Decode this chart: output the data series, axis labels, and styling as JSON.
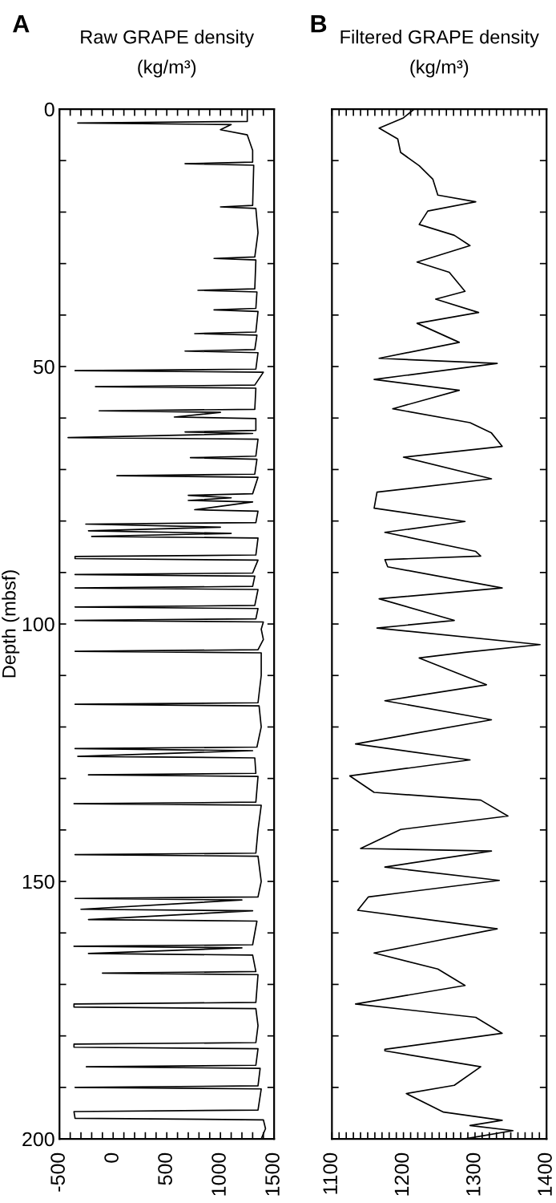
{
  "chart_data": [
    {
      "type": "line",
      "title": "Raw GRAPE density\n(kg/m³)",
      "ylabel": "Depth (mbsf)",
      "annotations": [
        "A"
      ],
      "xlim": [
        -500,
        1500
      ],
      "xticks": [
        -500,
        {
          "value": -400,
          "label": null
        },
        {
          "value": -300,
          "label": null
        },
        {
          "value": -200,
          "label": null
        },
        {
          "value": -100,
          "label": null
        },
        0,
        {
          "value": 100,
          "label": null
        },
        {
          "value": 200,
          "label": null
        },
        {
          "value": 300,
          "label": null
        },
        {
          "value": 400,
          "label": null
        },
        500,
        {
          "value": 600,
          "label": null
        },
        {
          "value": 700,
          "label": null
        },
        {
          "value": 800,
          "label": null
        },
        {
          "value": 900,
          "label": null
        },
        1000,
        {
          "value": 1100,
          "label": null
        },
        {
          "value": 1200,
          "label": null
        },
        {
          "value": 1300,
          "label": null
        },
        {
          "value": 1400,
          "label": null
        },
        1500
      ],
      "ylim": [
        200,
        0
      ],
      "yticks": [
        0,
        {
          "value": 10,
          "label": null
        },
        {
          "value": 20,
          "label": null
        },
        {
          "value": 30,
          "label": null
        },
        {
          "value": 40,
          "label": null
        },
        50,
        {
          "value": 60,
          "label": null
        },
        {
          "value": 70,
          "label": null
        },
        {
          "value": 80,
          "label": null
        },
        {
          "value": 90,
          "label": null
        },
        100,
        {
          "value": 110,
          "label": null
        },
        {
          "value": 120,
          "label": null
        },
        {
          "value": 130,
          "label": null
        },
        {
          "value": 140,
          "label": null
        },
        150,
        {
          "value": 160,
          "label": null
        },
        {
          "value": 170,
          "label": null
        },
        {
          "value": 180,
          "label": null
        },
        {
          "value": 190,
          "label": null
        },
        200
      ],
      "grid": false,
      "legend": false,
      "marker": "none",
      "line_style": "solid",
      "series": [
        {
          "color": "#000000",
          "x": [
            1250,
            1250,
            -330,
            1100,
            1000,
            1250,
            1300,
            1300,
            670,
            1310,
            1300,
            1000,
            1330,
            1350,
            1320,
            940,
            1330,
            1320,
            790,
            1340,
            1330,
            940,
            1350,
            1330,
            760,
            1340,
            1320,
            670,
            1350,
            1330,
            -355,
            1400,
            1320,
            -165,
            1330,
            1320,
            -130,
            1000,
            570,
            1330,
            1330,
            670,
            1300,
            -420,
            1350,
            1330,
            720,
            1340,
            1320,
            35,
            1350,
            1300,
            700,
            1100,
            700,
            1300,
            760,
            1350,
            1330,
            -255,
            1000,
            -230,
            1100,
            -200,
            1350,
            1330,
            -355,
            -355,
            1350,
            1300,
            -355,
            1320,
            1300,
            -355,
            1350,
            1320,
            -355,
            1350,
            1330,
            -355,
            1400,
            1380,
            1400,
            1350,
            -355,
            1380,
            1380,
            1350,
            -355,
            1360,
            1380,
            1340,
            -355,
            1300,
            -330,
            1320,
            1330,
            -230,
            1350,
            1330,
            -365,
            1380,
            1350,
            1330,
            -355,
            1350,
            1380,
            1350,
            -355,
            1200,
            -300,
            1300,
            -230,
            1340,
            1300,
            -365,
            1200,
            -230,
            1300,
            1330,
            -100,
            1350,
            1330,
            -365,
            -365,
            1330,
            1350,
            1330,
            -365,
            -365,
            1350,
            1330,
            -250,
            1370,
            1350,
            -355,
            1380,
            1350,
            -365,
            -355,
            1400,
            1420,
            1380
          ],
          "values": [
            0,
            2.4,
            2.7,
            3.0,
            4,
            5,
            8,
            10.3,
            10.6,
            10.9,
            18.7,
            19,
            19.3,
            24,
            28.7,
            29,
            29.3,
            34.9,
            35.2,
            35.5,
            38.7,
            39,
            39.3,
            43.3,
            43.6,
            43.9,
            46.7,
            47,
            47.3,
            50.5,
            50.8,
            51.1,
            53.6,
            53.9,
            54.2,
            58.3,
            58.6,
            58.9,
            59.8,
            60.1,
            62.4,
            62.7,
            63,
            63.8,
            64.1,
            67.4,
            67.7,
            68,
            70.9,
            71.2,
            71.5,
            74.7,
            75,
            75.5,
            76,
            76.3,
            77.8,
            78.1,
            80.3,
            80.6,
            81.2,
            81.9,
            82.4,
            83,
            83.3,
            86.6,
            86.9,
            87.3,
            87.6,
            90.1,
            90.4,
            90.7,
            92.7,
            93,
            93.3,
            96.4,
            96.7,
            97,
            99,
            99.3,
            99.6,
            101,
            103,
            105,
            105.3,
            105.6,
            110,
            115.3,
            115.6,
            115.9,
            120,
            123.9,
            124.2,
            124.6,
            125.7,
            126,
            129,
            129.3,
            129.6,
            134.6,
            134.9,
            135.2,
            140,
            144.5,
            144.8,
            145.1,
            150,
            153,
            153.3,
            153.6,
            155.4,
            155.7,
            157.4,
            157.7,
            162.3,
            162.6,
            162.9,
            164,
            164.3,
            167.5,
            167.8,
            168.1,
            173.5,
            173.8,
            174.4,
            174.7,
            178,
            181.3,
            181.6,
            182.2,
            182.5,
            185.7,
            186,
            186.3,
            189.7,
            190,
            190.3,
            194.4,
            194.7,
            196,
            196.3,
            198,
            200
          ]
        }
      ]
    },
    {
      "type": "line",
      "title": "Filtered GRAPE density\n(kg/m³)",
      "annotations": [
        "B"
      ],
      "tick_labels": "x",
      "xlim": [
        1100,
        1400
      ],
      "xticks": [
        1100,
        {
          "value": 1110,
          "label": null
        },
        {
          "value": 1120,
          "label": null
        },
        {
          "value": 1130,
          "label": null
        },
        {
          "value": 1140,
          "label": null
        },
        {
          "value": 1150,
          "label": null
        },
        {
          "value": 1160,
          "label": null
        },
        {
          "value": 1170,
          "label": null
        },
        {
          "value": 1180,
          "label": null
        },
        {
          "value": 1190,
          "label": null
        },
        1200,
        {
          "value": 1210,
          "label": null
        },
        {
          "value": 1220,
          "label": null
        },
        {
          "value": 1230,
          "label": null
        },
        {
          "value": 1240,
          "label": null
        },
        {
          "value": 1250,
          "label": null
        },
        {
          "value": 1260,
          "label": null
        },
        {
          "value": 1270,
          "label": null
        },
        {
          "value": 1280,
          "label": null
        },
        {
          "value": 1290,
          "label": null
        },
        1300,
        {
          "value": 1310,
          "label": null
        },
        {
          "value": 1320,
          "label": null
        },
        {
          "value": 1330,
          "label": null
        },
        {
          "value": 1340,
          "label": null
        },
        {
          "value": 1350,
          "label": null
        },
        {
          "value": 1360,
          "label": null
        },
        {
          "value": 1370,
          "label": null
        },
        {
          "value": 1380,
          "label": null
        },
        {
          "value": 1390,
          "label": null
        },
        1400
      ],
      "ylim": [
        200,
        0
      ],
      "yticks": [
        0,
        10,
        20,
        30,
        40,
        50,
        60,
        70,
        80,
        90,
        100,
        110,
        120,
        130,
        140,
        150,
        160,
        170,
        180,
        190,
        200
      ],
      "grid": false,
      "legend": false,
      "marker": "none",
      "line_style": "solid",
      "series": [
        {
          "color": "#000000",
          "x": [
            1215,
            1200,
            1166,
            1192,
            1196,
            1222,
            1241,
            1248,
            1301,
            1234,
            1222,
            1271,
            1293,
            1219,
            1264,
            1286,
            1245,
            1305,
            1219,
            1278,
            1166,
            1331,
            1159,
            1278,
            1185,
            1293,
            1323,
            1338,
            1200,
            1323,
            1163,
            1159,
            1286,
            1174,
            1301,
            1308,
            1174,
            1178,
            1338,
            1166,
            1271,
            1163,
            1391,
            1286,
            1222,
            1316,
            1174,
            1323,
            1133,
            1293,
            1125,
            1159,
            1308,
            1346,
            1196,
            1140,
            1323,
            1174,
            1334,
            1151,
            1136,
            1331,
            1159,
            1248,
            1286,
            1133,
            1301,
            1338,
            1174,
            1174,
            1308,
            1271,
            1204,
            1256,
            1338,
            1293,
            1353,
            1286
          ],
          "values": [
            0,
            1.7,
            3.7,
            5.8,
            8.4,
            11,
            13.6,
            16.7,
            18,
            19.8,
            22.4,
            24.5,
            26.5,
            29.7,
            31.7,
            35.4,
            36.9,
            39.5,
            41.6,
            45.3,
            48.4,
            49.4,
            52.5,
            54.6,
            58.2,
            60.9,
            62.9,
            65.5,
            67.6,
            71.8,
            74.4,
            77.5,
            80.1,
            82.2,
            85.9,
            86.8,
            87.5,
            88.9,
            93,
            95.1,
            99.3,
            100.8,
            104,
            105.5,
            106.6,
            111.8,
            114.9,
            118.6,
            123.3,
            126.4,
            129.5,
            132.7,
            134.2,
            137.3,
            139.9,
            143.6,
            144.1,
            147.2,
            149.8,
            153,
            155.6,
            159.2,
            163.9,
            167,
            170.2,
            173.8,
            176.4,
            179.5,
            182.6,
            182.9,
            186,
            189.6,
            191.2,
            194.8,
            196.4,
            197.4,
            198.4,
            200
          ]
        }
      ]
    }
  ]
}
